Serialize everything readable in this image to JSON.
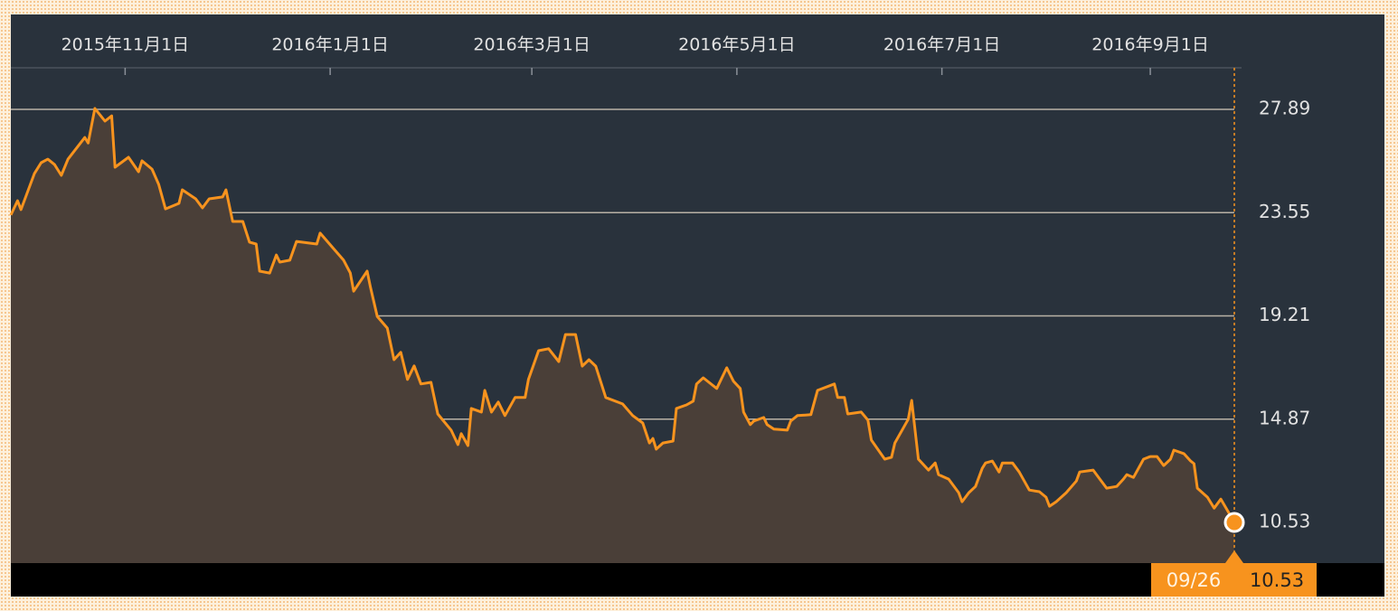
{
  "chart_data": {
    "type": "line",
    "color": "#f7931e",
    "grid": true,
    "xlim": [
      "2015-09-28",
      "2016-09-26"
    ],
    "ylim": [
      8.82,
      29.64
    ],
    "xticks": [
      {
        "value": "2015-11-01",
        "label": "2015年11月1日"
      },
      {
        "value": "2016-01-01",
        "label": "2016年1月1日"
      },
      {
        "value": "2016-03-01",
        "label": "2016年3月1日"
      },
      {
        "value": "2016-05-01",
        "label": "2016年5月1日"
      },
      {
        "value": "2016-07-01",
        "label": "2016年7月1日"
      },
      {
        "value": "2016-09-01",
        "label": "2016年9月1日"
      }
    ],
    "yticks": [
      27.89,
      23.55,
      19.21,
      14.87,
      10.53
    ],
    "cursor": {
      "x_label": "09/26",
      "value": 10.53
    },
    "x": [
      "2015-09-28",
      "2015-09-30",
      "2015-10-01",
      "2015-10-05",
      "2015-10-07",
      "2015-10-09",
      "2015-10-11",
      "2015-10-13",
      "2015-10-15",
      "2015-10-20",
      "2015-10-21",
      "2015-10-23",
      "2015-10-26",
      "2015-10-28",
      "2015-10-29",
      "2015-11-02",
      "2015-11-05",
      "2015-11-06",
      "2015-11-09",
      "2015-11-11",
      "2015-11-13",
      "2015-11-17",
      "2015-11-18",
      "2015-11-22",
      "2015-11-24",
      "2015-11-26",
      "2015-11-30",
      "2015-12-01",
      "2015-12-03",
      "2015-12-06",
      "2015-12-08",
      "2015-12-10",
      "2015-12-11",
      "2015-12-14",
      "2015-12-16",
      "2015-12-17",
      "2015-12-20",
      "2015-12-22",
      "2015-12-28",
      "2015-12-29",
      "2016-01-02",
      "2016-01-05",
      "2016-01-07",
      "2016-01-08",
      "2016-01-12",
      "2016-01-13",
      "2016-01-15",
      "2016-01-18",
      "2016-01-20",
      "2016-01-22",
      "2016-01-24",
      "2016-01-26",
      "2016-01-28",
      "2016-01-31",
      "2016-02-02",
      "2016-02-06",
      "2016-02-08",
      "2016-02-09",
      "2016-02-11",
      "2016-02-12",
      "2016-02-15",
      "2016-02-16",
      "2016-02-18",
      "2016-02-20",
      "2016-02-22",
      "2016-02-25",
      "2016-02-28",
      "2016-02-29",
      "2016-03-03",
      "2016-03-06",
      "2016-03-09",
      "2016-03-11",
      "2016-03-14",
      "2016-03-16",
      "2016-03-18",
      "2016-03-20",
      "2016-03-23",
      "2016-03-28",
      "2016-03-31",
      "2016-04-03",
      "2016-04-05",
      "2016-04-06",
      "2016-04-07",
      "2016-04-09",
      "2016-04-12",
      "2016-04-13",
      "2016-04-16",
      "2016-04-18",
      "2016-04-19",
      "2016-04-21",
      "2016-04-25",
      "2016-04-28",
      "2016-04-30",
      "2016-05-02",
      "2016-05-03",
      "2016-05-05",
      "2016-05-06",
      "2016-05-09",
      "2016-05-10",
      "2016-05-12",
      "2016-05-16",
      "2016-05-17",
      "2016-05-19",
      "2016-05-23",
      "2016-05-25",
      "2016-05-30",
      "2016-05-31",
      "2016-06-02",
      "2016-06-03",
      "2016-06-07",
      "2016-06-09",
      "2016-06-10",
      "2016-06-14",
      "2016-06-16",
      "2016-06-17",
      "2016-06-21",
      "2016-06-22",
      "2016-06-24",
      "2016-06-27",
      "2016-06-29",
      "2016-06-30",
      "2016-07-03",
      "2016-07-06",
      "2016-07-07",
      "2016-07-09",
      "2016-07-11",
      "2016-07-13",
      "2016-07-14",
      "2016-07-16",
      "2016-07-18",
      "2016-07-19",
      "2016-07-22",
      "2016-07-24",
      "2016-07-27",
      "2016-07-30",
      "2016-08-01",
      "2016-08-02",
      "2016-08-04",
      "2016-08-07",
      "2016-08-10",
      "2016-08-11",
      "2016-08-15",
      "2016-08-17",
      "2016-08-19",
      "2016-08-22",
      "2016-08-24",
      "2016-08-25",
      "2016-08-27",
      "2016-08-30",
      "2016-09-01",
      "2016-09-03",
      "2016-09-05",
      "2016-09-07",
      "2016-09-08",
      "2016-09-11",
      "2016-09-13",
      "2016-09-14",
      "2016-09-15",
      "2016-09-18",
      "2016-09-20",
      "2016-09-22",
      "2016-09-24",
      "2016-09-26"
    ],
    "values": [
      23.45,
      24.05,
      23.68,
      25.19,
      25.65,
      25.8,
      25.57,
      25.12,
      25.8,
      26.71,
      26.48,
      27.93,
      27.4,
      27.62,
      25.46,
      25.88,
      25.27,
      25.73,
      25.38,
      24.74,
      23.71,
      23.94,
      24.51,
      24.13,
      23.75,
      24.13,
      24.21,
      24.51,
      23.18,
      23.18,
      22.31,
      22.23,
      21.09,
      21.01,
      21.77,
      21.47,
      21.55,
      22.34,
      22.23,
      22.69,
      22.04,
      21.55,
      21.01,
      20.25,
      21.09,
      20.41,
      19.19,
      18.7,
      17.37,
      17.68,
      16.54,
      17.11,
      16.35,
      16.42,
      15.09,
      14.41,
      13.8,
      14.26,
      13.76,
      15.32,
      15.17,
      16.08,
      15.17,
      15.59,
      15.02,
      15.78,
      15.78,
      16.54,
      17.75,
      17.83,
      17.29,
      18.43,
      18.43,
      17.1,
      17.37,
      17.1,
      15.78,
      15.51,
      15.02,
      14.71,
      13.87,
      14.06,
      13.61,
      13.87,
      13.95,
      15.32,
      15.47,
      15.63,
      16.35,
      16.61,
      16.16,
      17.03,
      16.46,
      16.16,
      15.17,
      14.64,
      14.79,
      14.94,
      14.64,
      14.45,
      14.41,
      14.79,
      15.02,
      15.06,
      16.08,
      16.35,
      15.78,
      15.78,
      15.09,
      15.17,
      14.83,
      13.99,
      13.19,
      13.27,
      13.87,
      14.87,
      15.66,
      13.19,
      12.73,
      13.03,
      12.54,
      12.35,
      11.78,
      11.4,
      11.78,
      12.04,
      12.8,
      13.03,
      13.11,
      12.65,
      13.03,
      13.03,
      12.65,
      11.89,
      11.82,
      11.59,
      11.21,
      11.4,
      11.78,
      12.27,
      12.65,
      12.73,
      12.35,
      11.97,
      12.04,
      12.35,
      12.54,
      12.42,
      13.19,
      13.3,
      13.3,
      12.92,
      13.19,
      13.57,
      13.42,
      13.11,
      13.0,
      11.97,
      11.59,
      11.13,
      11.51,
      11.02,
      10.53
    ]
  }
}
